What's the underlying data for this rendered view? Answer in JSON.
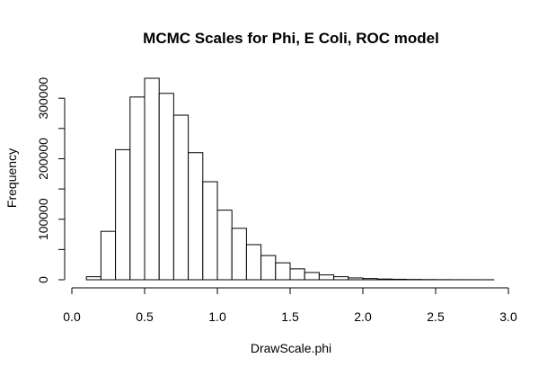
{
  "chart_data": {
    "type": "bar",
    "title": "MCMC Scales for Phi, E Coli, ROC model",
    "xlabel": "DrawScale.phi",
    "ylabel": "Frequency",
    "bin_width": 0.1,
    "bins_start": [
      0.1,
      0.2,
      0.3,
      0.4,
      0.5,
      0.6,
      0.7,
      0.8,
      0.9,
      1.0,
      1.1,
      1.2,
      1.3,
      1.4,
      1.5,
      1.6,
      1.7,
      1.8,
      1.9,
      2.0,
      2.1,
      2.2,
      2.3,
      2.4,
      2.5,
      2.6,
      2.7,
      2.8
    ],
    "values": [
      5000,
      80000,
      215000,
      302000,
      333000,
      308000,
      272000,
      210000,
      162000,
      115000,
      85000,
      58000,
      40000,
      28000,
      18000,
      12000,
      8000,
      5000,
      3000,
      2000,
      1200,
      800,
      500,
      300,
      200,
      120,
      80,
      50
    ],
    "xlim": [
      0.0,
      3.0
    ],
    "ylim": [
      0,
      340000
    ],
    "xticks": [
      0.0,
      0.5,
      1.0,
      1.5,
      2.0,
      2.5,
      3.0
    ],
    "xtick_labels": [
      "0.0",
      "0.5",
      "1.0",
      "1.5",
      "2.0",
      "2.5",
      "3.0"
    ],
    "yticks": [
      0,
      100000,
      200000,
      300000
    ],
    "ytick_labels": [
      "0",
      "100000",
      "200000",
      "300000"
    ],
    "minor_yticks": [
      50000,
      150000,
      250000
    ],
    "grid": false
  }
}
